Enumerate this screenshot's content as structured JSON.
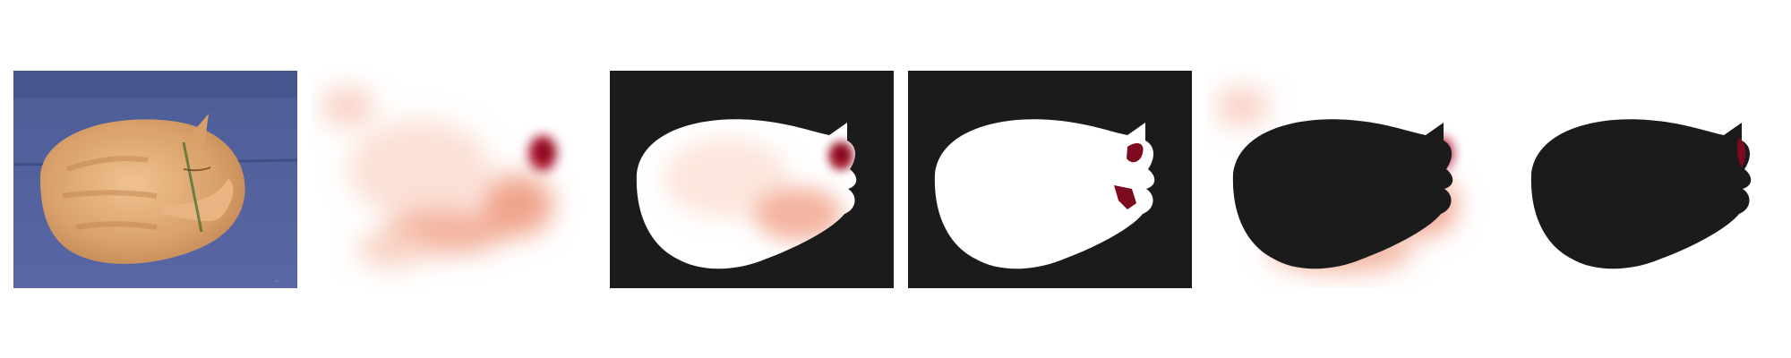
{
  "figure": {
    "panels": [
      {
        "id": "original",
        "kind": "photo",
        "subject": "cat",
        "background": "#4f5f9a"
      },
      {
        "id": "attention-heatmap",
        "kind": "heatmap",
        "background": "#ffffff",
        "colormap": [
          "#ffffff",
          "#f6c7b6",
          "#e27a64",
          "#7d0a1e"
        ]
      },
      {
        "id": "heatmap-inside-mask",
        "kind": "masked-heatmap",
        "mask_color": "#1b1b1b"
      },
      {
        "id": "mask-with-hotspots",
        "kind": "binary-mask",
        "mask_color": "#1b1b1b",
        "hotspot_color": "#7d0a1e"
      },
      {
        "id": "heatmap-outside-mask",
        "kind": "masked-heatmap",
        "mask_color": "#1b1b1b"
      },
      {
        "id": "outside-hotspot",
        "kind": "binary-mask",
        "mask_color": "#1b1b1b",
        "hotspot_color": "#7d0a1e"
      }
    ]
  }
}
